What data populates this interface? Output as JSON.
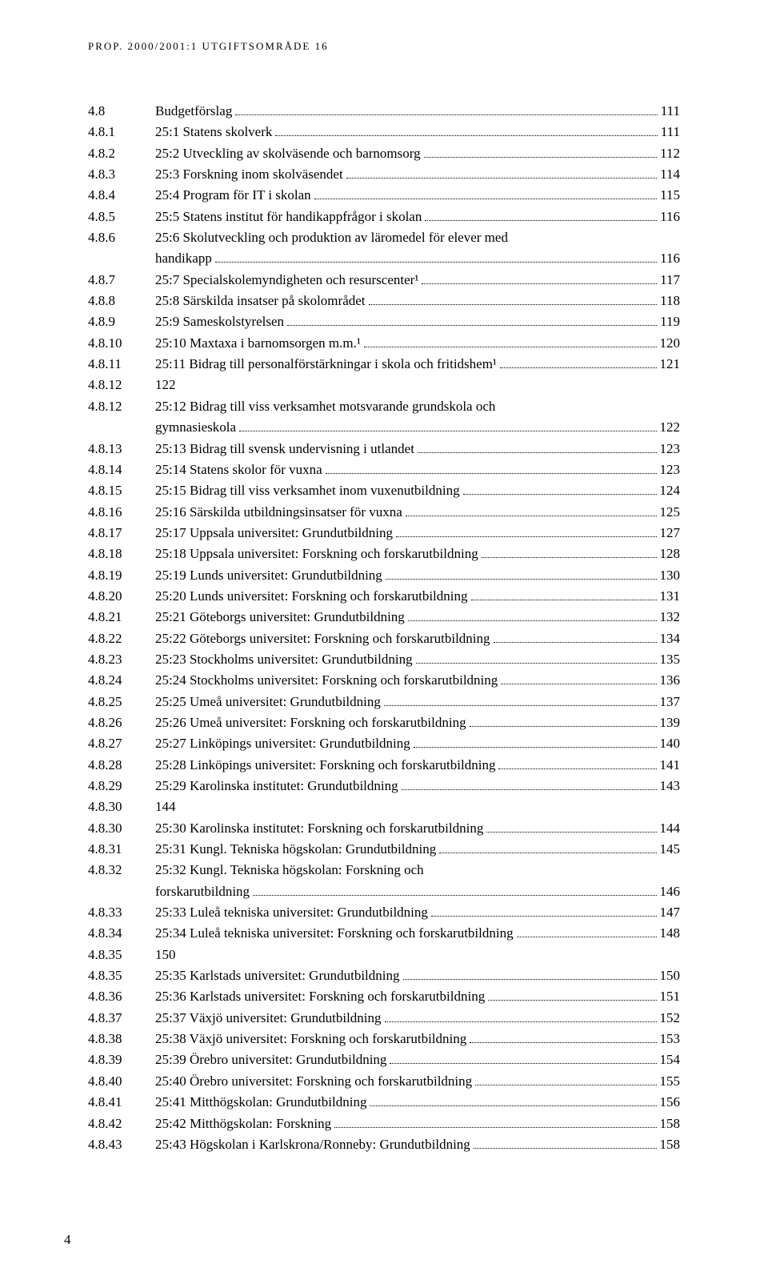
{
  "running_head": "PROP. 2000/2001:1 UTGIFTSOMRÅDE 16",
  "page_number": "4",
  "toc": [
    {
      "num": "4.8",
      "title": "Budgetförslag",
      "page": "111"
    },
    {
      "num": "4.8.1",
      "title": "25:1 Statens skolverk",
      "page": "111"
    },
    {
      "num": "4.8.2",
      "title": "25:2 Utveckling av skolväsende och barnomsorg",
      "page": "112"
    },
    {
      "num": "4.8.3",
      "title": "25:3 Forskning inom skolväsendet",
      "page": "114"
    },
    {
      "num": "4.8.4",
      "title": "25:4 Program för IT i skolan",
      "page": "115"
    },
    {
      "num": "4.8.5",
      "title": "25:5 Statens institut för handikappfrågor i skolan",
      "page": "116"
    },
    {
      "num": "4.8.6",
      "title": "25:6 Skolutveckling och produktion av läromedel för elever med",
      "page": "",
      "noLeader": true
    },
    {
      "num": "4.8.6",
      "title": "handikapp",
      "page": "116",
      "continuation": true
    },
    {
      "num": "4.8.7",
      "title": "25:7 Specialskolemyndigheten och resurscenter¹",
      "page": "117"
    },
    {
      "num": "4.8.8",
      "title": "25:8 Särskilda insatser på skolområdet",
      "page": "118"
    },
    {
      "num": "4.8.9",
      "title": "25:9 Sameskolstyrelsen",
      "page": "119"
    },
    {
      "num": "4.8.10",
      "title": "25:10 Maxtaxa i barnomsorgen m.m.¹",
      "page": "120"
    },
    {
      "num": "4.8.11",
      "title": "25:11 Bidrag till personalförstärkningar i skola och fritidshem¹",
      "page": "121"
    },
    {
      "num": "4.8.12",
      "title": "122",
      "page": "",
      "noLeader": true
    },
    {
      "num": "4.8.12",
      "title": "25:12 Bidrag till viss verksamhet motsvarande grundskola och",
      "page": "",
      "noLeader": true
    },
    {
      "num": "4.8.12",
      "title": "gymnasieskola",
      "page": "122",
      "continuation": true
    },
    {
      "num": "4.8.13",
      "title": "25:13 Bidrag till svensk undervisning i utlandet",
      "page": "123"
    },
    {
      "num": "4.8.14",
      "title": "25:14 Statens skolor för vuxna",
      "page": "123"
    },
    {
      "num": "4.8.15",
      "title": "25:15 Bidrag till viss verksamhet inom vuxenutbildning",
      "page": "124"
    },
    {
      "num": "4.8.16",
      "title": "25:16 Särskilda utbildningsinsatser för vuxna",
      "page": "125"
    },
    {
      "num": "4.8.17",
      "title": "25:17 Uppsala universitet: Grundutbildning",
      "page": "127"
    },
    {
      "num": "4.8.18",
      "title": "25:18 Uppsala universitet: Forskning och forskarutbildning",
      "page": "128"
    },
    {
      "num": "4.8.19",
      "title": "25:19 Lunds universitet: Grundutbildning",
      "page": "130"
    },
    {
      "num": "4.8.20",
      "title": "25:20 Lunds universitet: Forskning och forskarutbildning",
      "page": "131"
    },
    {
      "num": "4.8.21",
      "title": "25:21 Göteborgs universitet: Grundutbildning",
      "page": "132"
    },
    {
      "num": "4.8.22",
      "title": "25:22 Göteborgs universitet: Forskning och forskarutbildning",
      "page": "134"
    },
    {
      "num": "4.8.23",
      "title": "25:23 Stockholms universitet: Grundutbildning",
      "page": "135"
    },
    {
      "num": "4.8.24",
      "title": "25:24 Stockholms universitet: Forskning och forskarutbildning",
      "page": "136"
    },
    {
      "num": "4.8.25",
      "title": "25:25 Umeå universitet: Grundutbildning",
      "page": "137"
    },
    {
      "num": "4.8.26",
      "title": "25:26 Umeå universitet: Forskning och forskarutbildning",
      "page": "139"
    },
    {
      "num": "4.8.27",
      "title": "25:27 Linköpings universitet: Grundutbildning",
      "page": "140"
    },
    {
      "num": "4.8.28",
      "title": "25:28 Linköpings universitet: Forskning och forskarutbildning",
      "page": "141"
    },
    {
      "num": "4.8.29",
      "title": "25:29 Karolinska institutet: Grundutbildning",
      "page": "143"
    },
    {
      "num": "4.8.30",
      "title": "144",
      "page": "",
      "noLeader": true
    },
    {
      "num": "4.8.30",
      "title": "25:30 Karolinska institutet: Forskning och forskarutbildning",
      "page": "144"
    },
    {
      "num": "4.8.31",
      "title": "25:31 Kungl. Tekniska högskolan: Grundutbildning",
      "page": "145"
    },
    {
      "num": "4.8.32",
      "title": "25:32 Kungl. Tekniska högskolan: Forskning och",
      "page": "",
      "noLeader": true
    },
    {
      "num": "4.8.32",
      "title": "forskarutbildning",
      "page": "146",
      "continuation": true
    },
    {
      "num": "4.8.33",
      "title": "25:33 Luleå tekniska universitet: Grundutbildning",
      "page": "147"
    },
    {
      "num": "4.8.34",
      "title": "25:34 Luleå tekniska universitet: Forskning och forskarutbildning",
      "page": "148"
    },
    {
      "num": "4.8.35",
      "title": "150",
      "page": "",
      "noLeader": true
    },
    {
      "num": "4.8.35",
      "title": "25:35 Karlstads universitet: Grundutbildning",
      "page": "150"
    },
    {
      "num": "4.8.36",
      "title": "25:36 Karlstads universitet: Forskning och forskarutbildning",
      "page": "151"
    },
    {
      "num": "4.8.37",
      "title": "25:37 Växjö universitet: Grundutbildning",
      "page": "152"
    },
    {
      "num": "4.8.38",
      "title": "25:38 Växjö universitet: Forskning och forskarutbildning",
      "page": "153"
    },
    {
      "num": "4.8.39",
      "title": "25:39 Örebro universitet: Grundutbildning",
      "page": "154"
    },
    {
      "num": "4.8.40",
      "title": "25:40 Örebro universitet: Forskning och forskarutbildning",
      "page": "155"
    },
    {
      "num": "4.8.41",
      "title": "25:41 Mitthögskolan: Grundutbildning",
      "page": "156"
    },
    {
      "num": "4.8.42",
      "title": "25:42 Mitthögskolan: Forskning",
      "page": "158"
    },
    {
      "num": "4.8.43",
      "title": "25:43 Högskolan i Karlskrona/Ronneby: Grundutbildning",
      "page": "158"
    }
  ]
}
